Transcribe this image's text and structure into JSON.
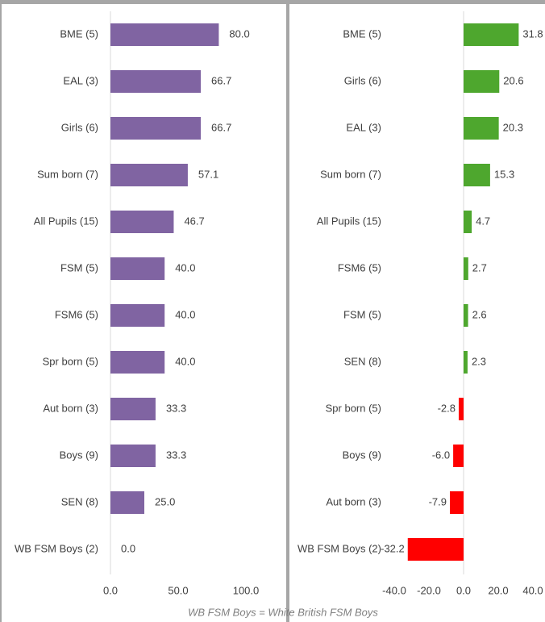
{
  "chart_data": [
    {
      "type": "bar",
      "orientation": "horizontal",
      "categories": [
        "BME (5)",
        "EAL (3)",
        "Girls (6)",
        "Sum born (7)",
        "All Pupils (15)",
        "FSM (5)",
        "FSM6 (5)",
        "Spr born (5)",
        "Aut born (3)",
        "Boys (9)",
        "SEN (8)",
        "WB FSM Boys (2)"
      ],
      "values": [
        80.0,
        66.7,
        66.7,
        57.1,
        46.7,
        40.0,
        40.0,
        40.0,
        33.3,
        33.3,
        25.0,
        0.0
      ],
      "value_labels": [
        "80.0",
        "66.7",
        "66.7",
        "57.1",
        "46.7",
        "40.0",
        "40.0",
        "40.0",
        "33.3",
        "33.3",
        "25.0",
        "0.0"
      ],
      "color": "#8064a2",
      "xlim": [
        0,
        100
      ],
      "xticks": [
        {
          "value": 0,
          "label": "0.0"
        },
        {
          "value": 50,
          "label": "50.0"
        },
        {
          "value": 100,
          "label": "100.0"
        }
      ]
    },
    {
      "type": "bar",
      "orientation": "horizontal",
      "categories": [
        "BME (5)",
        "Girls (6)",
        "EAL (3)",
        "Sum born (7)",
        "All Pupils (15)",
        "FSM6 (5)",
        "FSM (5)",
        "SEN (8)",
        "Spr born (5)",
        "Boys (9)",
        "Aut born (3)",
        "WB FSM Boys (2)"
      ],
      "values": [
        31.8,
        20.6,
        20.3,
        15.3,
        4.7,
        2.7,
        2.6,
        2.3,
        -2.8,
        -6.0,
        -7.9,
        -32.2
      ],
      "value_labels": [
        "31.8",
        "20.6",
        "20.3",
        "15.3",
        "4.7",
        "2.7",
        "2.6",
        "2.3",
        "-2.8",
        "-6.0",
        "-7.9",
        "-32.2"
      ],
      "color": "#4ea72e",
      "negative_color": "#ff0000",
      "xlim": [
        -40,
        40
      ],
      "xticks": [
        {
          "value": -40,
          "label": "-40.0"
        },
        {
          "value": -20,
          "label": "-20.0"
        },
        {
          "value": 0,
          "label": "0.0"
        },
        {
          "value": 20,
          "label": "20.0"
        },
        {
          "value": 40,
          "label": "40.0"
        }
      ]
    }
  ],
  "footnote": "WB FSM Boys = White British FSM Boys"
}
